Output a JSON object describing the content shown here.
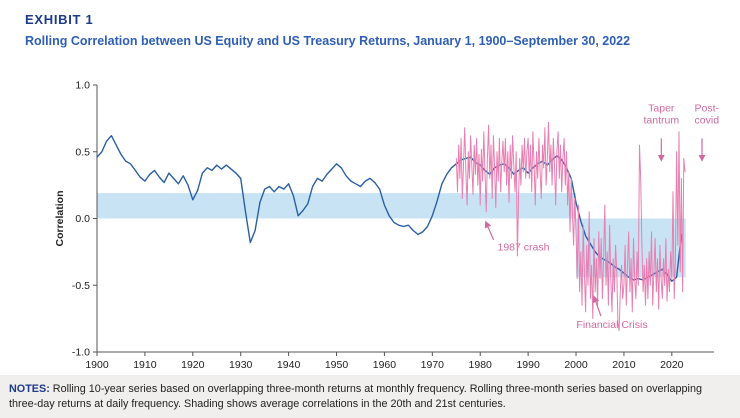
{
  "header": {
    "exhibit": "EXHIBIT 1",
    "title": "Rolling Correlation between US Equity and US Treasury Returns, January 1, 1900–September 30, 2022"
  },
  "notes": {
    "label": "NOTES:",
    "text": "Rolling 10-year series based on overlapping three-month returns at monthly frequency. Rolling three-month series based on overlapping three-day returns at daily frequency. Shading shows average correlations in the 20th and 21st centuries."
  },
  "colors": {
    "band": "#c8e4f4",
    "blue_line": "#2a5fa5",
    "pink_line": "#e87fb2",
    "annotation": "#d2699f",
    "axis": "#555555",
    "text": "#222222",
    "title_navy": "#1e3a8a",
    "title_blue": "#2e5fb5",
    "notes_bg": "#f0efed"
  },
  "chart_data": {
    "type": "line",
    "title": "Rolling Correlation between US Equity and US Treasury Returns, January 1, 1900–September 30, 2022",
    "xlabel": "",
    "ylabel": "Correlation",
    "ylim": [
      -1.0,
      1.0
    ],
    "yticks": [
      1.0,
      0.5,
      0.0,
      -0.5,
      -1.0
    ],
    "xlim": [
      1900,
      2024
    ],
    "xticks": [
      1900,
      1910,
      1920,
      1930,
      1940,
      1950,
      1960,
      1970,
      1980,
      1990,
      2000,
      2010,
      2020
    ],
    "grid": false,
    "legend": "none",
    "shading": [
      {
        "id": "20th-century",
        "label": "20th century average correlation",
        "x0": 1900,
        "x1": 2000,
        "y0": 0.0,
        "y1": 0.19
      },
      {
        "id": "21st-century",
        "label": "21st century average correlation",
        "x0": 2000,
        "x1": 2022.9,
        "y0": -0.44,
        "y1": 0.0
      }
    ],
    "series": [
      {
        "id": "rolling-10-year",
        "name": "Rolling 10-year correlation of overlapping three-month returns (monthly)",
        "color": "#2a5fa5",
        "x_start": 1900,
        "x_step": 1,
        "values": [
          0.46,
          0.5,
          0.58,
          0.62,
          0.55,
          0.48,
          0.43,
          0.41,
          0.36,
          0.31,
          0.28,
          0.33,
          0.36,
          0.31,
          0.27,
          0.34,
          0.3,
          0.26,
          0.32,
          0.25,
          0.14,
          0.21,
          0.34,
          0.38,
          0.36,
          0.4,
          0.37,
          0.4,
          0.37,
          0.34,
          0.3,
          0.05,
          -0.18,
          -0.09,
          0.12,
          0.22,
          0.24,
          0.2,
          0.24,
          0.22,
          0.26,
          0.17,
          0.02,
          0.06,
          0.11,
          0.24,
          0.3,
          0.28,
          0.33,
          0.37,
          0.41,
          0.38,
          0.32,
          0.28,
          0.26,
          0.24,
          0.28,
          0.3,
          0.27,
          0.22,
          0.1,
          0.02,
          -0.03,
          -0.05,
          -0.06,
          -0.05,
          -0.09,
          -0.12,
          -0.1,
          -0.06,
          0.02,
          0.13,
          0.26,
          0.33,
          0.38,
          0.41,
          0.44,
          0.45,
          0.46,
          0.42,
          0.4,
          0.36,
          0.33,
          0.38,
          0.4,
          0.41,
          0.38,
          0.33,
          0.36,
          0.38,
          0.34,
          0.38,
          0.41,
          0.43,
          0.4,
          0.44,
          0.47,
          0.44,
          0.38,
          0.3,
          0.12,
          -0.02,
          -0.13,
          -0.19,
          -0.25,
          -0.29,
          -0.31,
          -0.33,
          -0.36,
          -0.38,
          -0.41,
          -0.44,
          -0.46,
          -0.45,
          -0.46,
          -0.44,
          -0.42,
          -0.4,
          -0.38,
          -0.42,
          -0.47,
          -0.44,
          -0.12
        ]
      },
      {
        "id": "rolling-3-month",
        "name": "Rolling three-month correlation of overlapping three-day returns (daily)",
        "color": "#e87fb2",
        "x_start": 1975,
        "x_step": 0.25,
        "values": [
          0.45,
          0.2,
          0.55,
          0.3,
          0.6,
          0.15,
          0.4,
          0.68,
          0.35,
          0.1,
          0.5,
          0.3,
          0.62,
          0.4,
          0.18,
          0.55,
          0.33,
          0.6,
          0.25,
          0.48,
          0.1,
          0.52,
          0.28,
          0.65,
          0.35,
          0.05,
          0.45,
          0.7,
          0.3,
          0.55,
          0.15,
          0.62,
          0.38,
          0.08,
          0.5,
          0.28,
          0.6,
          0.2,
          0.42,
          0.58,
          0.35,
          0.6,
          0.25,
          0.5,
          0.12,
          0.55,
          0.3,
          0.62,
          0.4,
          0.2,
          0.5,
          -0.28,
          0.15,
          0.45,
          0.25,
          0.55,
          0.35,
          0.6,
          0.3,
          0.5,
          0.6,
          0.3,
          0.55,
          0.2,
          0.65,
          0.4,
          0.1,
          0.5,
          0.3,
          0.6,
          0.35,
          0.15,
          0.55,
          0.38,
          0.68,
          0.25,
          0.45,
          0.72,
          0.35,
          0.55,
          0.25,
          0.6,
          0.4,
          0.1,
          0.5,
          0.65,
          0.3,
          0.55,
          0.2,
          0.45,
          0.6,
          0.25,
          0.5,
          0.1,
          0.35,
          -0.1,
          0.3,
          0.05,
          -0.2,
          0.15,
          -0.1,
          -0.45,
          0.1,
          -0.55,
          -0.25,
          -0.65,
          -0.05,
          -0.4,
          -0.7,
          -0.2,
          -0.5,
          0.05,
          -0.6,
          -0.35,
          -0.75,
          -0.15,
          -0.55,
          -0.3,
          -0.65,
          -0.1,
          -0.45,
          -0.15,
          -0.6,
          -0.3,
          0.1,
          -0.5,
          -0.25,
          -0.65,
          -0.05,
          -0.45,
          -0.7,
          -0.3,
          -0.55,
          -0.2,
          -0.4,
          -0.78,
          -0.84,
          -0.55,
          -0.35,
          -0.6,
          -0.5,
          -0.2,
          -0.65,
          -0.35,
          -0.1,
          -0.55,
          -0.3,
          -0.7,
          -0.15,
          -0.45,
          -0.6,
          -0.25,
          -0.5,
          0.55,
          0.3,
          -0.2,
          -0.55,
          -0.35,
          -0.65,
          -0.3,
          -0.6,
          -0.25,
          -0.5,
          -0.1,
          -0.65,
          -0.4,
          -0.15,
          -0.55,
          -0.3,
          -0.68,
          -0.2,
          -0.45,
          -0.6,
          -0.3,
          -0.5,
          -0.15,
          -0.62,
          -0.38,
          -0.55,
          -0.25,
          -0.45,
          0.2,
          -0.6,
          -0.3,
          0.5,
          -0.2,
          0.65,
          -0.4,
          0.3,
          -0.55,
          0.45,
          0.35
        ]
      }
    ],
    "annotations": [
      {
        "id": "1987-crash",
        "lines": [
          "1987 crash"
        ],
        "x": 1983.6,
        "y": -0.24,
        "anchor": "start",
        "arrow": {
          "x1": 1982.8,
          "y1": -0.16,
          "x2": 1981.2,
          "y2": -0.03
        }
      },
      {
        "id": "financial-crisis",
        "lines": [
          "Financial Crisis"
        ],
        "x": 2007.5,
        "y": -0.82,
        "anchor": "middle",
        "arrow": {
          "x1": 2005.2,
          "y1": -0.73,
          "x2": 2003.8,
          "y2": -0.59
        }
      },
      {
        "id": "taper-tantrum",
        "lines": [
          "Taper",
          "tantrum"
        ],
        "x": 2017.8,
        "y": 0.8,
        "anchor": "middle",
        "arrow": {
          "x1": 2017.8,
          "y1": 0.6,
          "x2": 2017.8,
          "y2": 0.44
        }
      },
      {
        "id": "post-covid",
        "lines": [
          "Post-",
          "covid"
        ],
        "x": 2027.3,
        "y": 0.8,
        "anchor": "middle",
        "arrow": {
          "x1": 2026.3,
          "y1": 0.6,
          "x2": 2026.3,
          "y2": 0.44
        }
      }
    ]
  }
}
